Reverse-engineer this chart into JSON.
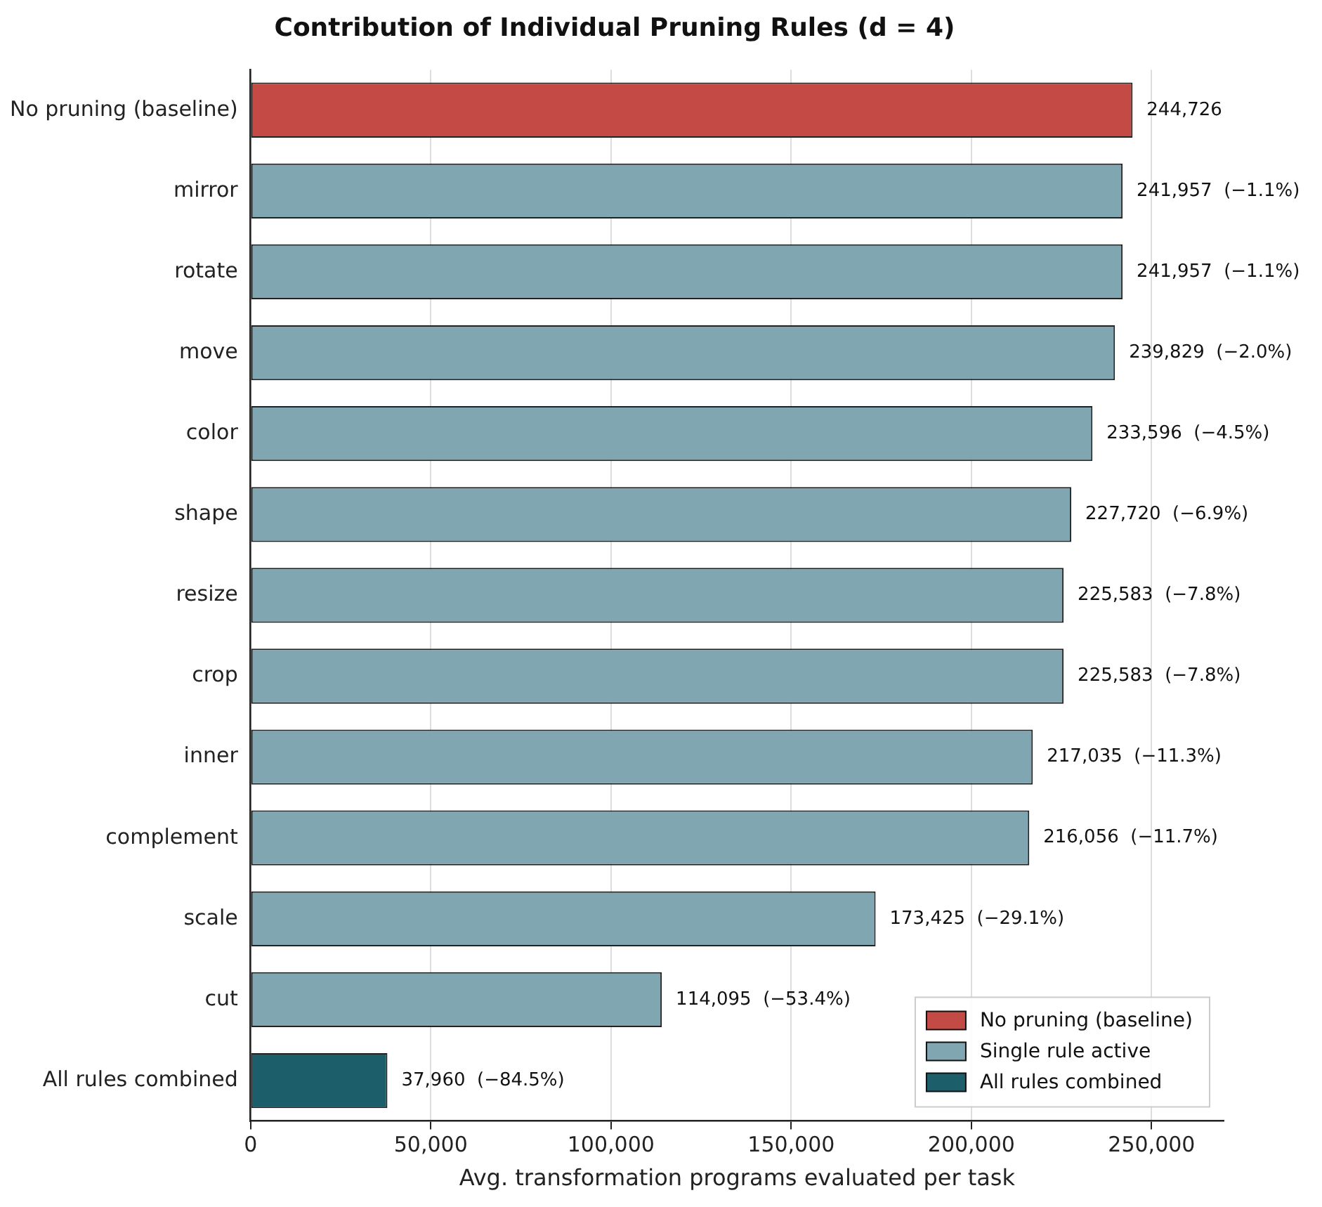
{
  "chart_data": {
    "type": "bar",
    "orientation": "horizontal",
    "title": "Contribution of Individual Pruning Rules (d = 4)",
    "xlabel": "Avg. transformation programs evaluated per task",
    "categories": [
      "No pruning (baseline)",
      "mirror",
      "rotate",
      "move",
      "color",
      "shape",
      "resize",
      "crop",
      "inner",
      "complement",
      "scale",
      "cut",
      "All rules combined"
    ],
    "series": [
      {
        "name": "No pruning (baseline)",
        "color": "#c44a45",
        "values": [
          244726,
          null,
          null,
          null,
          null,
          null,
          null,
          null,
          null,
          null,
          null,
          null,
          null
        ]
      },
      {
        "name": "Single rule active",
        "color": "#7fa6b1",
        "values": [
          null,
          241957,
          241957,
          239829,
          233596,
          227720,
          225583,
          225583,
          217035,
          216056,
          173425,
          114095,
          null
        ]
      },
      {
        "name": "All rules combined",
        "color": "#1c5f6b",
        "values": [
          null,
          null,
          null,
          null,
          null,
          null,
          null,
          null,
          null,
          null,
          null,
          null,
          37960
        ]
      }
    ],
    "value_labels": [
      "244,726",
      "241,957  (−1.1%)",
      "241,957  (−1.1%)",
      "239,829  (−2.0%)",
      "233,596  (−4.5%)",
      "227,720  (−6.9%)",
      "225,583  (−7.8%)",
      "225,583  (−7.8%)",
      "217,035  (−11.3%)",
      "216,056  (−11.7%)",
      "173,425  (−29.1%)",
      "114,095  (−53.4%)",
      "37,960  (−84.5%)"
    ],
    "xlim": [
      0,
      270000
    ],
    "xticks": [
      {
        "value": 0,
        "label": "0"
      },
      {
        "value": 50000,
        "label": "50,000"
      },
      {
        "value": 100000,
        "label": "100,000"
      },
      {
        "value": 150000,
        "label": "150,000"
      },
      {
        "value": 200000,
        "label": "200,000"
      },
      {
        "value": 250000,
        "label": "250,000"
      }
    ],
    "grid": "x",
    "legend": "bottom right"
  }
}
